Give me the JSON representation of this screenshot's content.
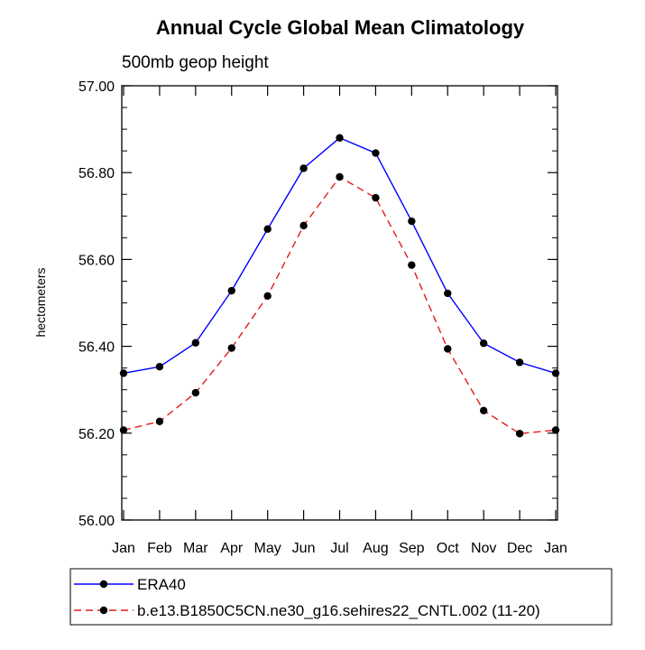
{
  "chart_data": {
    "type": "line",
    "title": "Annual Cycle Global Mean Climatology",
    "subtitle": "500mb geop height",
    "xlabel": "",
    "ylabel": "hectometers",
    "categories": [
      "Jan",
      "Feb",
      "Mar",
      "Apr",
      "May",
      "Jun",
      "Jul",
      "Aug",
      "Sep",
      "Oct",
      "Nov",
      "Dec",
      "Jan"
    ],
    "ylim": [
      56.0,
      57.0
    ],
    "yticks": [
      "56.00",
      "56.20",
      "56.40",
      "56.60",
      "56.80",
      "57.00"
    ],
    "grid": false,
    "legend_position": "bottom",
    "series": [
      {
        "name": "ERA40",
        "color": "#0000ff",
        "line_style": "solid",
        "values": [
          56.338,
          56.353,
          56.408,
          56.528,
          56.67,
          56.81,
          56.88,
          56.845,
          56.688,
          56.522,
          56.407,
          56.363,
          56.338
        ]
      },
      {
        "name": "b.e13.B1850C5CN.ne30_g16.sehires22_CNTL.002 (11-20)",
        "color": "#e41a1c",
        "line_style": "dashed",
        "values": [
          56.207,
          56.227,
          56.293,
          56.396,
          56.516,
          56.678,
          56.79,
          56.742,
          56.587,
          56.394,
          56.252,
          56.199,
          56.207
        ]
      }
    ]
  }
}
